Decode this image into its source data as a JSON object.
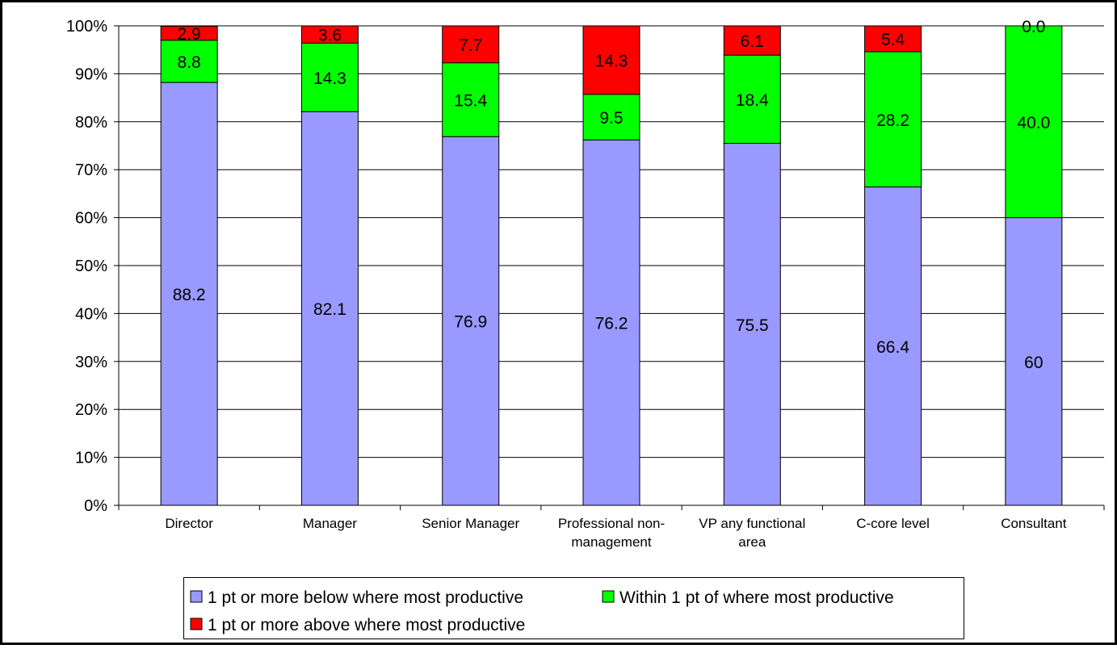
{
  "chart_data": {
    "type": "bar",
    "stacked": true,
    "percent_stacked": true,
    "categories": [
      [
        "Director"
      ],
      [
        "Manager"
      ],
      [
        "Senior Manager"
      ],
      [
        "Professional non-",
        "management"
      ],
      [
        "VP any functional",
        "area"
      ],
      [
        "C-core level"
      ],
      [
        "Consultant"
      ]
    ],
    "series": [
      {
        "name": "1 pt or more below where most productive",
        "color": "#9999ff",
        "values": [
          88.2,
          82.1,
          76.9,
          76.2,
          75.5,
          66.4,
          60
        ],
        "labels": [
          "88.2",
          "82.1",
          "76.9",
          "76.2",
          "75.5",
          "66.4",
          "60"
        ]
      },
      {
        "name": "Within  1 pt of where most productive",
        "color": "#00ff00",
        "values": [
          8.8,
          14.3,
          15.4,
          9.5,
          18.4,
          28.2,
          40.0
        ],
        "labels": [
          "8.8",
          "14.3",
          "15.4",
          "9.5",
          "18.4",
          "28.2",
          "40.0"
        ]
      },
      {
        "name": "1 pt or more above where most productive",
        "color": "#ff0000",
        "values": [
          2.9,
          3.6,
          7.7,
          14.3,
          6.1,
          5.4,
          0.0
        ],
        "labels": [
          "2.9",
          "3.6",
          "7.7",
          "14.3",
          "6.1",
          "5.4",
          "0.0"
        ]
      }
    ],
    "ylim": [
      0,
      100
    ],
    "yticks": [
      "0%",
      "10%",
      "20%",
      "30%",
      "40%",
      "50%",
      "60%",
      "70%",
      "80%",
      "90%",
      "100%"
    ],
    "grid": true,
    "legend_position": "bottom"
  }
}
